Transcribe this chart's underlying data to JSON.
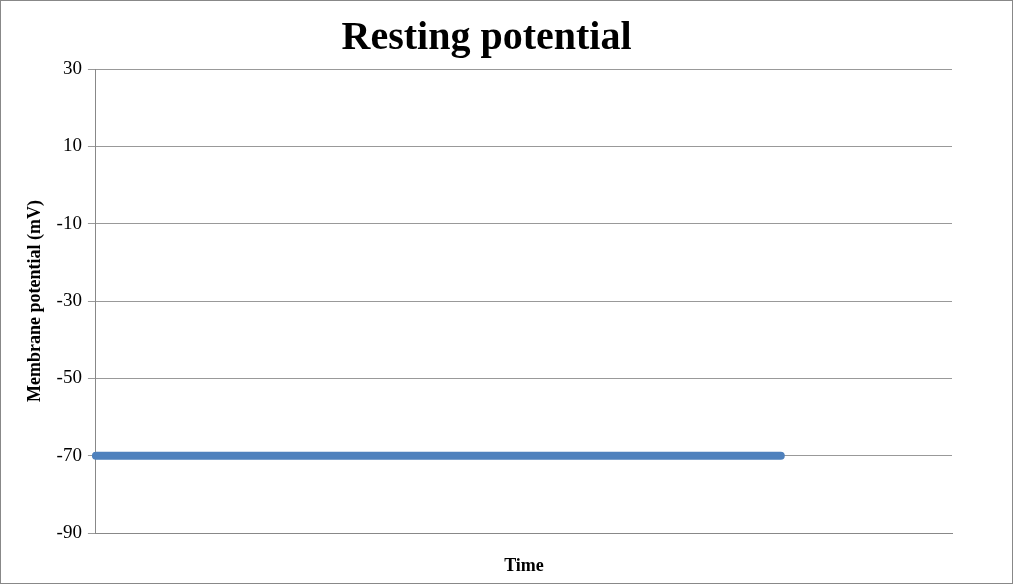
{
  "chart_data": {
    "type": "line",
    "title": "Resting potential",
    "xlabel": "Time",
    "ylabel": "Membrane potential (mV)",
    "categories": [
      null,
      null,
      null,
      null,
      null,
      null
    ],
    "series": [
      {
        "color": "#4f81bd",
        "values": [
          -70,
          -70,
          -70,
          -70,
          -70,
          null
        ]
      }
    ],
    "ylim": [
      -90,
      30
    ],
    "yticks": [
      -90,
      -70,
      -50,
      -30,
      -10,
      10,
      30
    ],
    "grid": "y",
    "legend": false,
    "marker": "none",
    "line_style": "solid"
  }
}
